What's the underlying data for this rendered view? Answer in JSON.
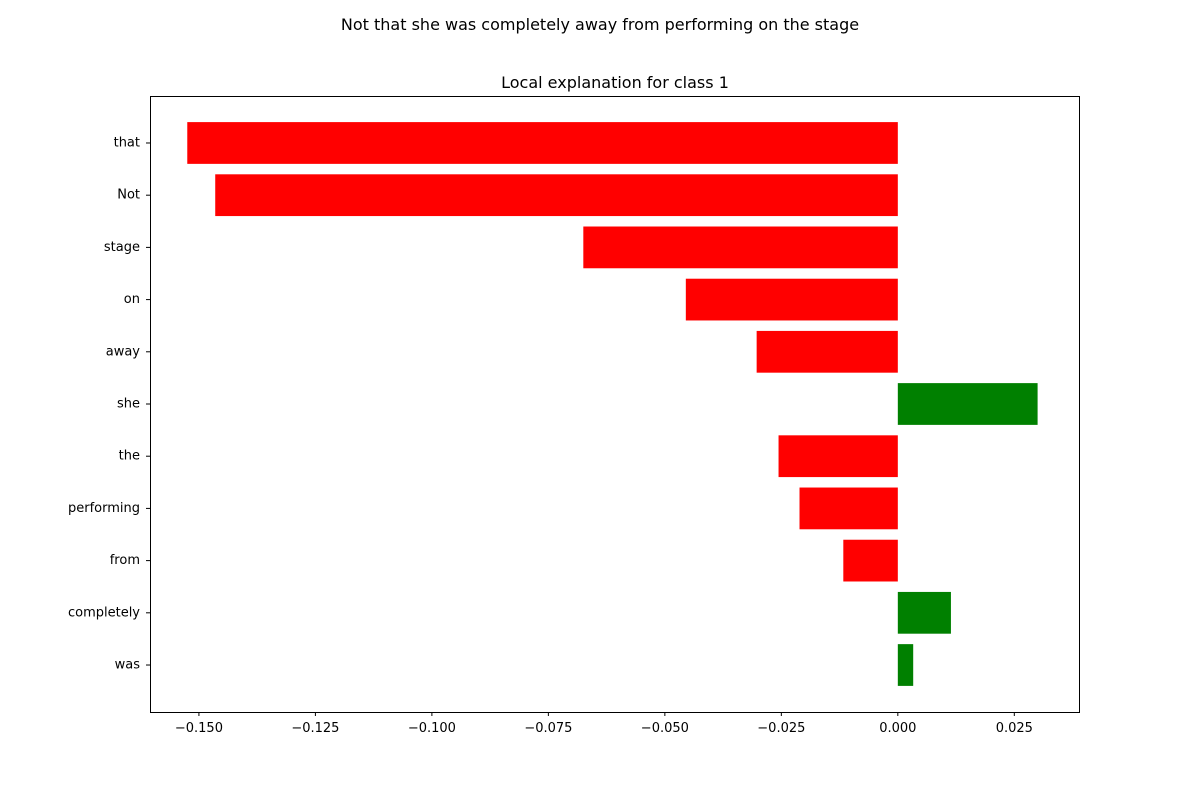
{
  "chart_data": {
    "type": "bar",
    "orientation": "horizontal",
    "suptitle": "Not that she was completely away from performing on the stage",
    "title": "Local explanation for class 1",
    "xlabel": "",
    "ylabel": "",
    "xlim": [
      -0.1605,
      0.0391
    ],
    "grid": false,
    "legend": "none",
    "categories": [
      "that",
      "Not",
      "stage",
      "on",
      "away",
      "she",
      "the",
      "performing",
      "from",
      "completely",
      "was"
    ],
    "values": [
      -0.1525,
      -0.1465,
      -0.0675,
      -0.0455,
      -0.0303,
      0.03,
      -0.0256,
      -0.0211,
      -0.0117,
      0.0114,
      0.0033
    ],
    "x_ticks": [
      -0.15,
      -0.125,
      -0.1,
      -0.075,
      -0.05,
      -0.025,
      0.0,
      0.025
    ],
    "x_tick_labels": [
      "−0.150",
      "−0.125",
      "−0.100",
      "−0.075",
      "−0.050",
      "−0.025",
      "0.000",
      "0.025"
    ],
    "colors": {
      "negative": "#ff0000",
      "positive": "#008000"
    }
  }
}
